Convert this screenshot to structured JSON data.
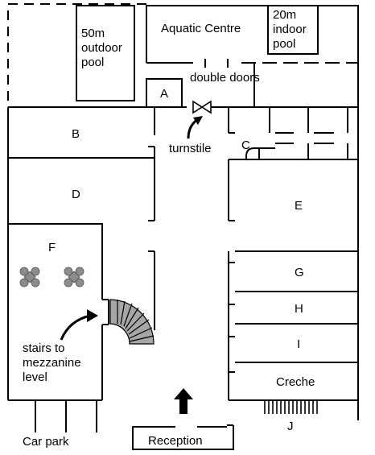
{
  "labels": {
    "outdoor_pool": [
      "50m",
      "outdoor",
      "pool"
    ],
    "aquatic_centre": "Aquatic Centre",
    "indoor_pool": [
      "20m",
      "indoor",
      "pool"
    ],
    "room_a": "A",
    "double_doors": "double doors",
    "room_b": "B",
    "turnstile": "turnstile",
    "room_c": "C",
    "room_d": "D",
    "room_e": "E",
    "room_f": "F",
    "room_g": "G",
    "room_h": "H",
    "room_i": "I",
    "stairs": [
      "stairs to",
      "mezzanine",
      "level"
    ],
    "creche": "Creche",
    "room_j": "J",
    "car_park": "Car park",
    "reception": "Reception"
  },
  "colors": {
    "line": "#000000",
    "stairs_fill": "#a6a6a6",
    "plant_fill": "#8c8c8c"
  }
}
